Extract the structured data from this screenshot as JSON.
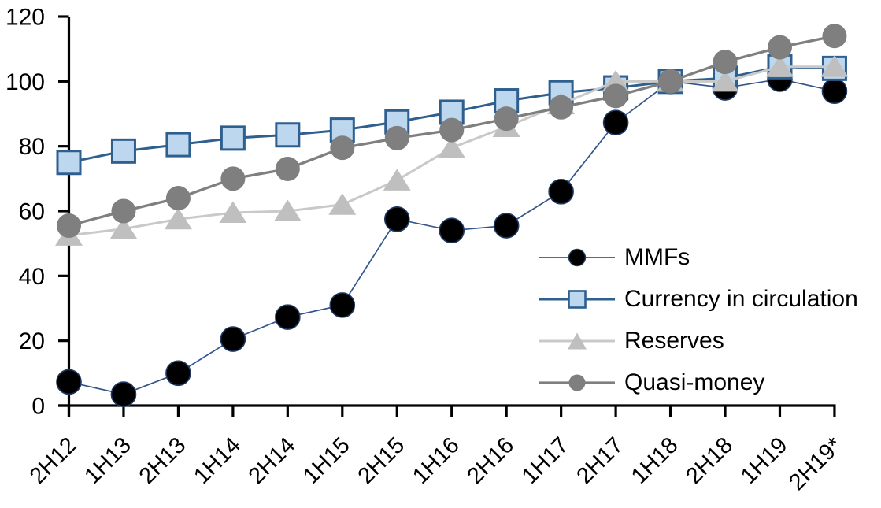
{
  "chart_data": {
    "type": "line",
    "title": "",
    "xlabel": "",
    "ylabel": "",
    "ylim": [
      0,
      120
    ],
    "yticks": [
      0,
      20,
      40,
      60,
      80,
      100,
      120
    ],
    "grid": false,
    "legend_position": "center-right",
    "axis_color": "#000000",
    "background_color": "#FFFFFF",
    "categories": [
      "2H12",
      "1H13",
      "2H13",
      "1H14",
      "2H14",
      "1H15",
      "2H15",
      "1H16",
      "2H16",
      "1H17",
      "2H17",
      "1H18",
      "2H18",
      "1H19",
      "2H19*"
    ],
    "series": [
      {
        "name": "MMFs",
        "marker": "circle",
        "fill": "#000000",
        "marker_stroke": "#1F3864",
        "line_color": "#34558B",
        "line_width": 1.7,
        "values": [
          7.3,
          3.5,
          10,
          20.5,
          27.3,
          31,
          57.5,
          54,
          55.5,
          66,
          87.3,
          100,
          98,
          100.7,
          97
        ]
      },
      {
        "name": "Currency in circulation",
        "marker": "square",
        "fill": "#BDD7EE",
        "marker_stroke": "#2E5F8F",
        "line_color": "#2E5F8F",
        "line_width": 3,
        "values": [
          75,
          78.5,
          80.5,
          82.5,
          83.5,
          85,
          87.5,
          90.5,
          94,
          96.5,
          98,
          100,
          101,
          104.5,
          104
        ]
      },
      {
        "name": "Reserves",
        "marker": "triangle",
        "fill": "#BFBFBF",
        "marker_stroke": "none",
        "line_color": "#C9C9C9",
        "line_width": 3,
        "values": [
          52.5,
          54.5,
          57.5,
          59.5,
          60,
          62,
          69.5,
          79.5,
          86,
          93,
          100,
          100,
          100,
          104.5,
          104.5
        ]
      },
      {
        "name": "Quasi-money",
        "marker": "circle",
        "fill": "#7F7F7F",
        "marker_stroke": "none",
        "line_color": "#7F7F7F",
        "line_width": 3.3,
        "values": [
          55.5,
          60,
          64,
          70,
          73,
          79.5,
          82.5,
          85,
          88.5,
          92,
          95.5,
          100,
          106,
          110.5,
          114
        ]
      }
    ]
  }
}
